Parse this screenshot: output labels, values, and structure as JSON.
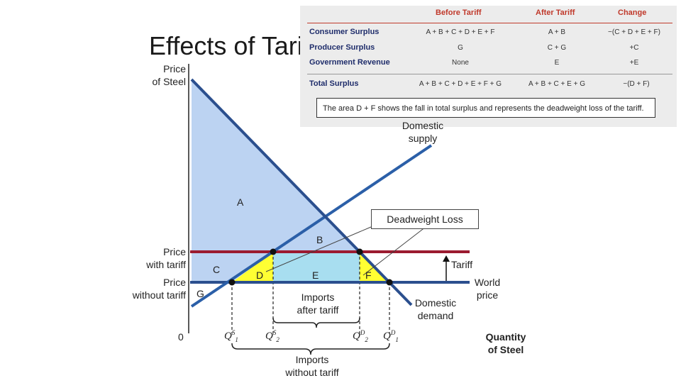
{
  "slide": {
    "title": "Effects of Tariff"
  },
  "axes": {
    "y_title": [
      "Price",
      "of Steel"
    ],
    "x_title": [
      "Quantity",
      "of Steel"
    ],
    "origin": "0",
    "price_with_tariff": [
      "Price",
      "with tariff"
    ],
    "price_without_tariff": [
      "Price",
      "without tariff"
    ],
    "q1s": "Q",
    "q2s": "Q",
    "q2d": "Q",
    "q1d": "Q",
    "q1s_sup": "S",
    "q1s_sub": "1",
    "q2s_sup": "S",
    "q2s_sub": "2",
    "q2d_sup": "D",
    "q2d_sub": "2",
    "q1d_sup": "D",
    "q1d_sub": "1"
  },
  "curves": {
    "domestic_supply": [
      "Domestic",
      "supply"
    ],
    "domestic_demand": [
      "Domestic",
      "demand"
    ],
    "tariff": "Tariff",
    "world_price": [
      "World",
      "price"
    ]
  },
  "areas": {
    "A": "A",
    "B": "B",
    "C": "C",
    "D": "D",
    "E": "E",
    "F": "F",
    "G": "G",
    "deadweight_loss": "Deadweight Loss"
  },
  "brackets": {
    "imports_after": [
      "Imports",
      "after tariff"
    ],
    "imports_without": [
      "Imports",
      "without tariff"
    ]
  },
  "table": {
    "headers": [
      "Before Tariff",
      "After Tariff",
      "Change"
    ],
    "rows": [
      {
        "label": "Consumer Surplus",
        "before": "A + B + C + D + E + F",
        "after": "A + B",
        "change": "−(C + D + E + F)"
      },
      {
        "label": "Producer Surplus",
        "before": "G",
        "after": "C + G",
        "change": "+C"
      },
      {
        "label": "Government Revenue",
        "before": "None",
        "after": "E",
        "change": "+E"
      },
      {
        "label": "Total Surplus",
        "before": "A + B + C + D + E + F + G",
        "after": "A + B + C + E + G",
        "change": "−(D + F)"
      }
    ],
    "note": "The area D + F shows the fall in total surplus and represents the deadweight loss of the tariff."
  },
  "colors": {
    "demand_line": "#2b4f8e",
    "supply_line": "#2b5fa8",
    "tariff_line": "#9b1b30",
    "world_line": "#2b4f8e",
    "consumer_area": "#bcd3f2",
    "revenue_area": "#a8def0",
    "deadweight_area": "#ffff00",
    "table_header": "#c0392b",
    "table_label": "#1f2d6b"
  }
}
